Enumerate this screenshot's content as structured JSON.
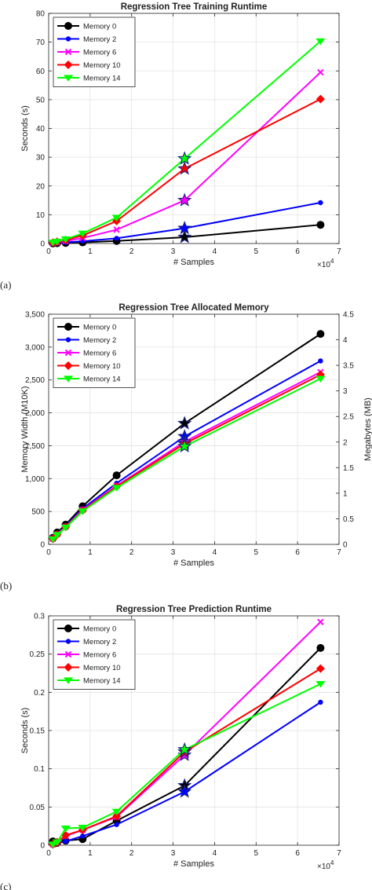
{
  "chart_data": [
    {
      "type": "line",
      "panel_label": "(a)",
      "title": "Regression Tree Training Runtime",
      "xlabel": "# Samples",
      "ylabel": "Seconds (s)",
      "x_exponent": "×10^4",
      "xlim": [
        0,
        70000
      ],
      "ylim": [
        0,
        80
      ],
      "xticks": [
        0,
        10000,
        20000,
        30000,
        40000,
        50000,
        60000,
        70000
      ],
      "xtick_labels": [
        "0",
        "1",
        "2",
        "3",
        "4",
        "5",
        "6",
        "7"
      ],
      "yticks": [
        0,
        10,
        20,
        30,
        40,
        50,
        60,
        70,
        80
      ],
      "ytick_labels": [
        "0",
        "10",
        "20",
        "30",
        "40",
        "50",
        "60",
        "70",
        "80"
      ],
      "grid": true,
      "legend": "top-left",
      "x": [
        1024,
        2048,
        4096,
        8192,
        16384,
        32768,
        65536
      ],
      "star_x": 32768,
      "series": [
        {
          "name": "Memory 0",
          "color": "#000000",
          "marker": "circle",
          "values": [
            0.05,
            0.1,
            0.2,
            0.4,
            0.9,
            2.2,
            6.5
          ]
        },
        {
          "name": "Memory 2",
          "color": "#0000ff",
          "marker": "dot",
          "values": [
            0.1,
            0.2,
            0.4,
            0.8,
            1.8,
            5.3,
            14.2
          ]
        },
        {
          "name": "Memory 6",
          "color": "#ff00ff",
          "marker": "x",
          "values": [
            0.2,
            0.4,
            0.8,
            1.9,
            4.8,
            15.0,
            59.5
          ]
        },
        {
          "name": "Memory 10",
          "color": "#ff0000",
          "marker": "diamond",
          "values": [
            0.3,
            0.6,
            1.2,
            2.8,
            7.8,
            26.0,
            50.2
          ]
        },
        {
          "name": "Memory 14",
          "color": "#00ff00",
          "marker": "triangle-down",
          "values": [
            0.35,
            0.7,
            1.5,
            3.5,
            9.0,
            29.5,
            70.3
          ]
        }
      ]
    },
    {
      "type": "line",
      "panel_label": "(b)",
      "title": "Regression Tree Allocated Memory",
      "xlabel": "# Samples",
      "ylabel": "Memory Width (M10K)",
      "y2label": "Megabytes (MB)",
      "xlim": [
        0,
        70000
      ],
      "ylim": [
        0,
        3500
      ],
      "y2lim": [
        0,
        4.5
      ],
      "xticks": [
        0,
        10000,
        20000,
        30000,
        40000,
        50000,
        60000,
        70000
      ],
      "xtick_labels": [
        "0",
        "1",
        "2",
        "3",
        "4",
        "5",
        "6",
        "7"
      ],
      "yticks": [
        0,
        500,
        1000,
        1500,
        2000,
        2500,
        3000,
        3500
      ],
      "ytick_labels": [
        "0",
        "500",
        "1,000",
        "1,500",
        "2,000",
        "2,500",
        "3,000",
        "3,500"
      ],
      "y2ticks": [
        0,
        0.5,
        1,
        1.5,
        2,
        2.5,
        3,
        3.5,
        4,
        4.5
      ],
      "y2tick_labels": [
        "0",
        "0.5",
        "1",
        "1.5",
        "2",
        "2.5",
        "3",
        "3.5",
        "4",
        "4.5"
      ],
      "grid": true,
      "legend": "top-left",
      "x": [
        1024,
        2048,
        4096,
        8192,
        16384,
        32768,
        65536
      ],
      "star_x": 32768,
      "series": [
        {
          "name": "Memory 0",
          "color": "#000000",
          "marker": "circle",
          "values": [
            100,
            180,
            300,
            580,
            1050,
            1840,
            3200
          ]
        },
        {
          "name": "Memory 2",
          "color": "#0000ff",
          "marker": "dot",
          "values": [
            90,
            165,
            280,
            545,
            930,
            1640,
            2790
          ]
        },
        {
          "name": "Memory 6",
          "color": "#ff00ff",
          "marker": "x",
          "values": [
            85,
            155,
            270,
            525,
            890,
            1560,
            2620
          ]
        },
        {
          "name": "Memory 10",
          "color": "#ff0000",
          "marker": "diamond",
          "values": [
            82,
            150,
            265,
            515,
            880,
            1530,
            2580
          ]
        },
        {
          "name": "Memory 14",
          "color": "#00ff00",
          "marker": "triangle-down",
          "values": [
            78,
            145,
            255,
            505,
            860,
            1490,
            2520
          ]
        }
      ]
    },
    {
      "type": "line",
      "panel_label": "(c)",
      "title": "Regression Tree Prediction Runtime",
      "xlabel": "# Samples",
      "ylabel": "Seconds (s)",
      "x_exponent": "×10^4",
      "xlim": [
        0,
        70000
      ],
      "ylim": [
        0,
        0.3
      ],
      "xticks": [
        0,
        10000,
        20000,
        30000,
        40000,
        50000,
        60000,
        70000
      ],
      "xtick_labels": [
        "0",
        "1",
        "2",
        "3",
        "4",
        "5",
        "6",
        "7"
      ],
      "yticks": [
        0,
        0.05,
        0.1,
        0.15,
        0.2,
        0.25,
        0.3
      ],
      "ytick_labels": [
        "0",
        "0.05",
        "0.1",
        "0.15",
        "0.2",
        "0.25",
        "0.3"
      ],
      "grid": true,
      "legend": "top-left",
      "x": [
        1024,
        2048,
        4096,
        8192,
        16384,
        32768,
        65536
      ],
      "star_x": 32768,
      "series": [
        {
          "name": "Memory 0",
          "color": "#000000",
          "marker": "circle",
          "values": [
            0.005,
            0.003,
            0.006,
            0.008,
            0.032,
            0.078,
            0.258
          ]
        },
        {
          "name": "Memory 2",
          "color": "#0000ff",
          "marker": "dot",
          "values": [
            0.002,
            0.003,
            0.005,
            0.012,
            0.027,
            0.07,
            0.187
          ]
        },
        {
          "name": "Memory 6",
          "color": "#ff00ff",
          "marker": "x",
          "values": [
            0.001,
            0.003,
            0.012,
            0.02,
            0.037,
            0.118,
            0.292
          ]
        },
        {
          "name": "Memory 10",
          "color": "#ff0000",
          "marker": "diamond",
          "values": [
            0.001,
            0.004,
            0.013,
            0.02,
            0.038,
            0.122,
            0.231
          ]
        },
        {
          "name": "Memory 14",
          "color": "#00ff00",
          "marker": "triangle-down",
          "values": [
            0.001,
            0.004,
            0.022,
            0.023,
            0.044,
            0.125,
            0.211
          ]
        }
      ]
    }
  ]
}
